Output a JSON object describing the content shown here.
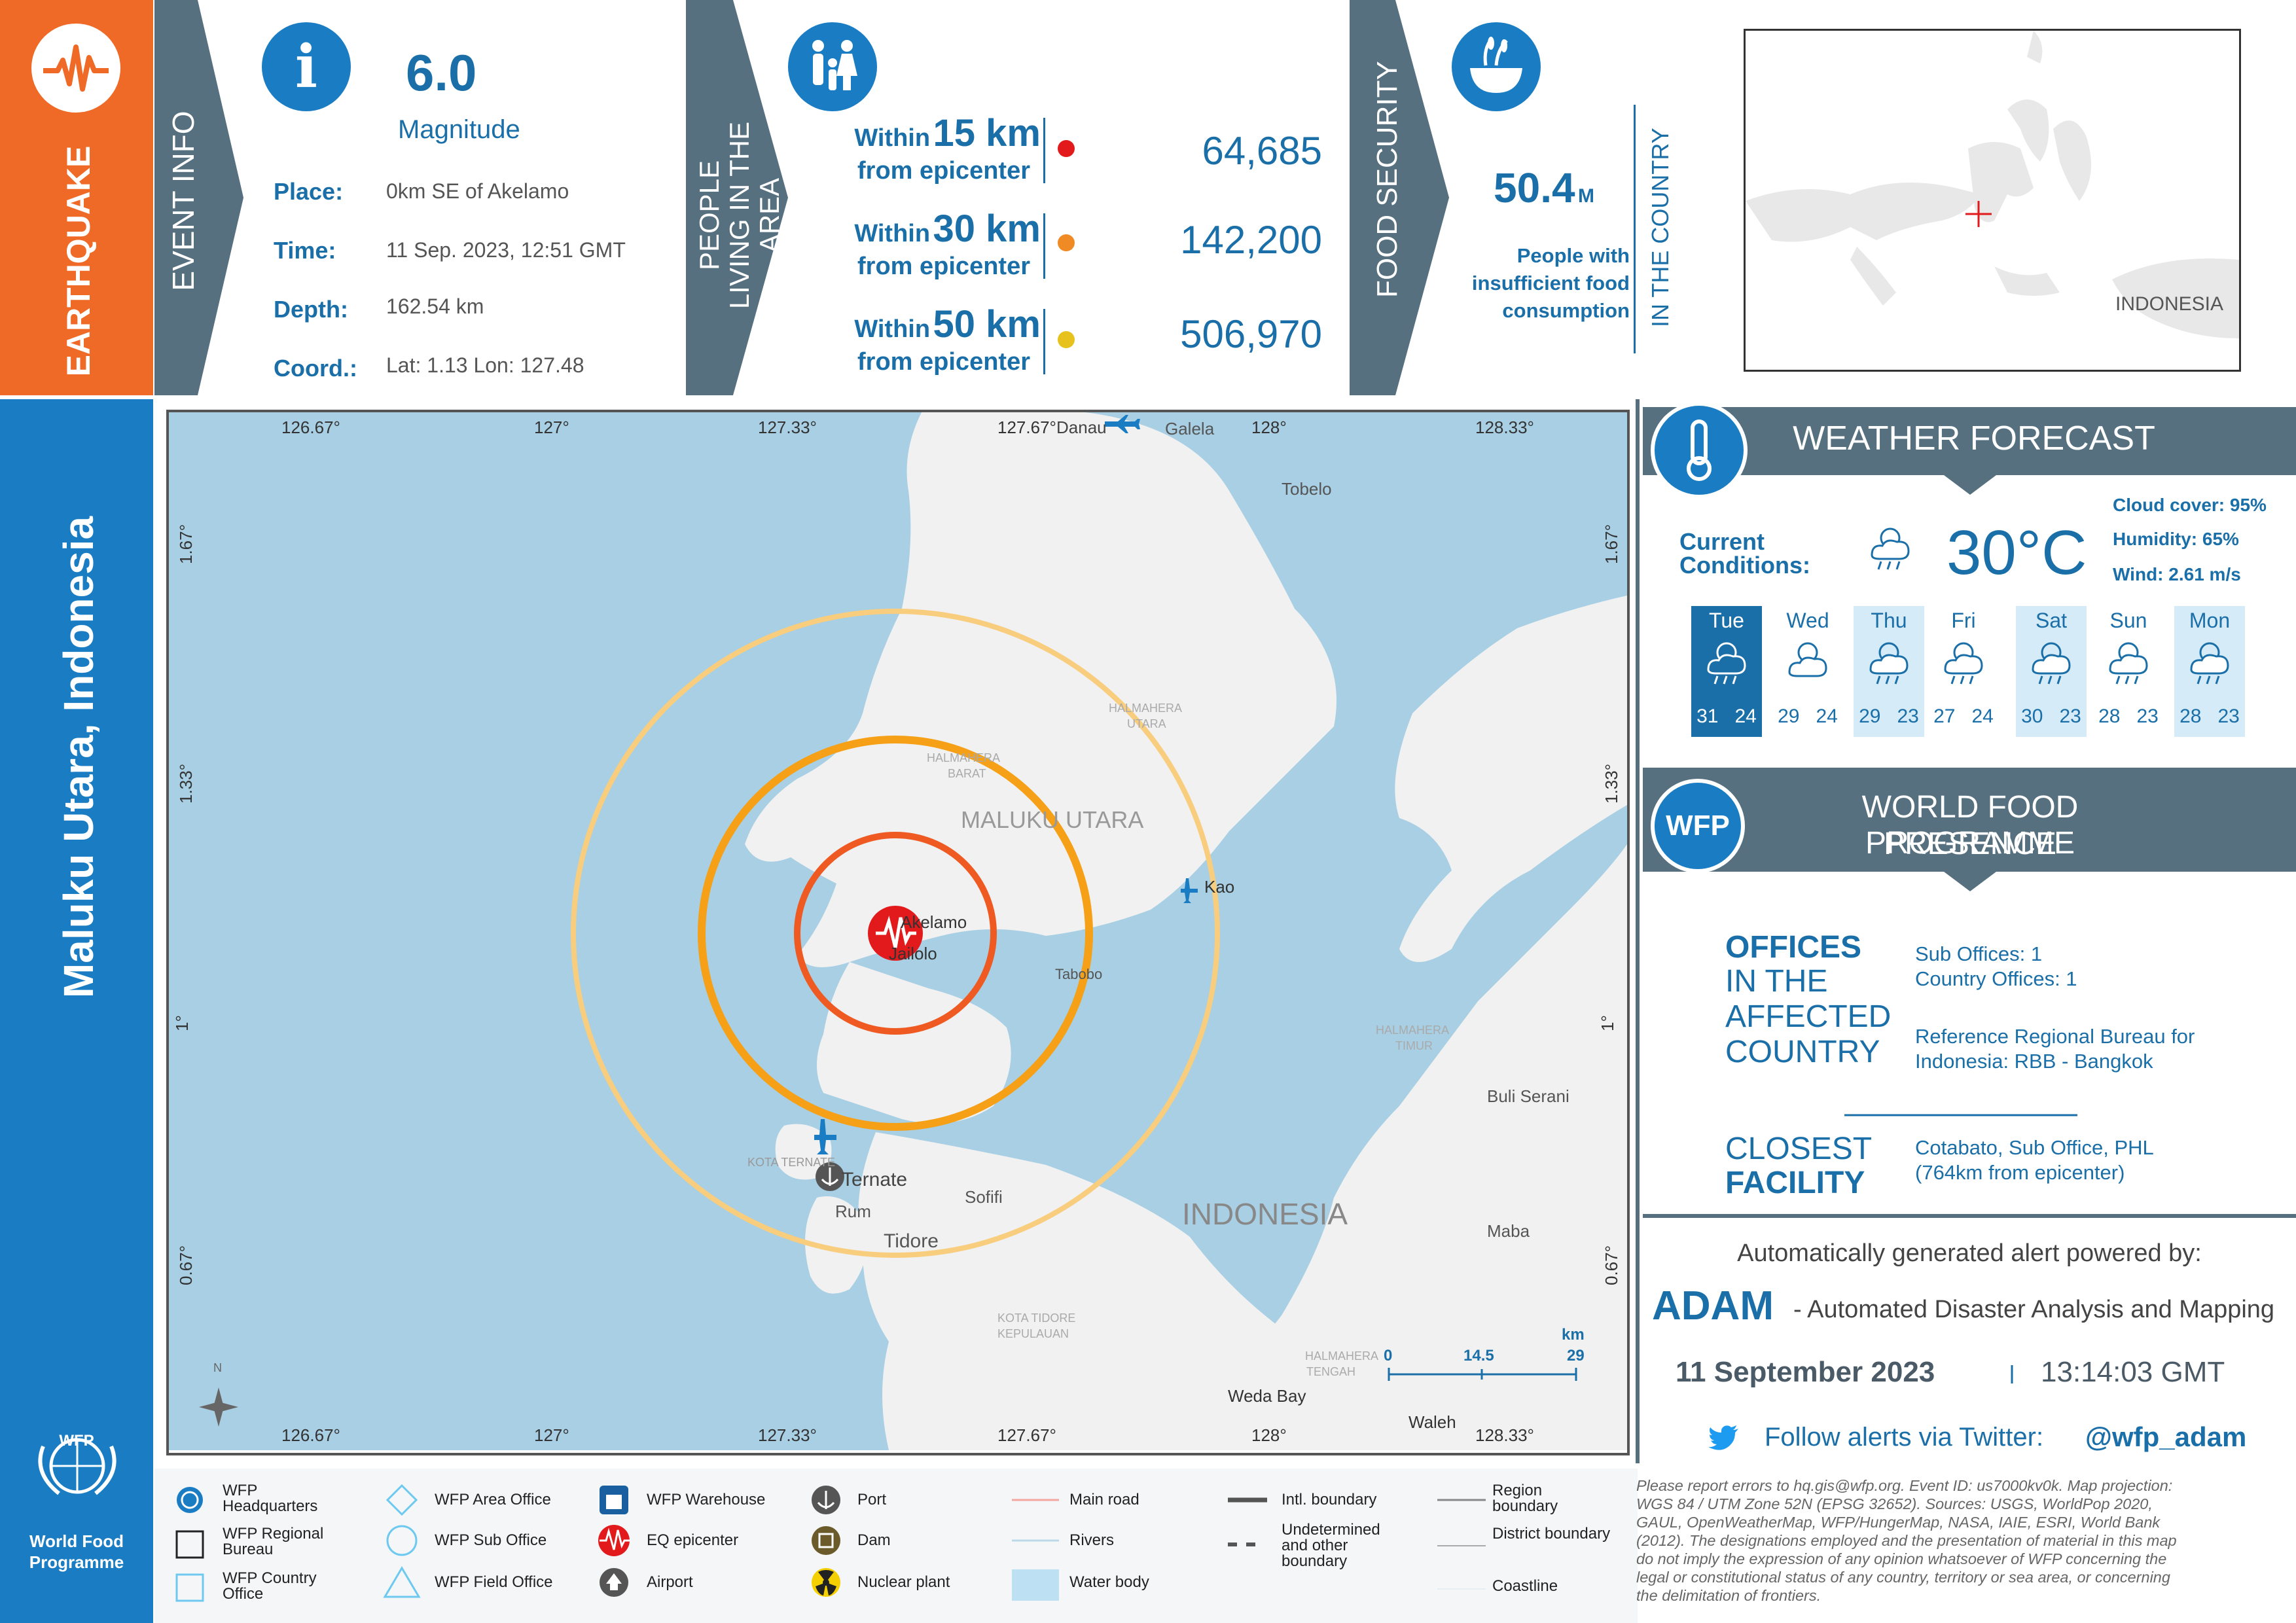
{
  "event_type": "EARTHQUAKE",
  "region_title": "Maluku Utara, Indonesia",
  "event_info": {
    "header": "EVENT INFO",
    "magnitude": "6.0",
    "magnitude_label": "Magnitude",
    "place_label": "Place:",
    "place": "0km SE of Akelamo",
    "time_label": "Time:",
    "time": "11 Sep. 2023, 12:51 GMT",
    "depth_label": "Depth:",
    "depth": "162.54 km",
    "coord_label": "Coord.:",
    "coord": "Lat: 1.13 Lon: 127.48"
  },
  "population": {
    "header": "PEOPLE LIVING IN THE AREA",
    "rows": [
      {
        "within": "Within",
        "km": "15 km",
        "from": "from epicenter",
        "value": "64,685",
        "color": "#e31a1c"
      },
      {
        "within": "Within",
        "km": "30 km",
        "from": "from epicenter",
        "value": "142,200",
        "color": "#f08a24"
      },
      {
        "within": "Within",
        "km": "50 km",
        "from": "from epicenter",
        "value": "506,970",
        "color": "#e8c21c"
      }
    ]
  },
  "food_security": {
    "header": "FOOD SECURITY",
    "value": "50.4",
    "unit": "M",
    "desc": "People with insufficient food consumption",
    "side": "IN THE COUNTRY"
  },
  "inset_map": {
    "label": "INDONESIA"
  },
  "weather": {
    "header": "WEATHER FORECAST",
    "current_label": "Current Conditions:",
    "temperature": "30°C",
    "cloud": "Cloud cover: 95%",
    "humidity": "Humidity: 65%",
    "wind": "Wind: 2.61 m/s",
    "days": [
      {
        "name": "Tue",
        "hi": "31",
        "lo": "24"
      },
      {
        "name": "Wed",
        "hi": "29",
        "lo": "24"
      },
      {
        "name": "Thu",
        "hi": "29",
        "lo": "23"
      },
      {
        "name": "Fri",
        "hi": "27",
        "lo": "24"
      },
      {
        "name": "Sat",
        "hi": "30",
        "lo": "23"
      },
      {
        "name": "Sun",
        "hi": "28",
        "lo": "23"
      },
      {
        "name": "Mon",
        "hi": "28",
        "lo": "23"
      }
    ]
  },
  "wfp_presence": {
    "header_line1": "WORLD FOOD PROGRAMME",
    "header_line2": "PRESENCE",
    "badge": "WFP",
    "offices_l1": "OFFICES",
    "offices_l2": "IN THE",
    "offices_l3": "AFFECTED",
    "offices_l4": "COUNTRY",
    "sub_offices": "Sub Offices: 1",
    "country_offices": "Country Offices: 1",
    "rbb_line1": "Reference Regional Bureau for",
    "rbb_line2": "Indonesia: RBB - Bangkok",
    "closest_l1": "CLOSEST",
    "closest_l2": "FACILITY",
    "closest_line1": "Cotabato, Sub Office, PHL",
    "closest_line2": "(764km from epicenter)"
  },
  "adam": {
    "powered": "Automatically generated alert powered by:",
    "name": "ADAM",
    "desc": "- Automated Disaster Analysis and Mapping",
    "date": "11 September 2023",
    "time": "13:14:03 GMT",
    "follow": "Follow alerts via Twitter:",
    "handle": "@wfp_adam"
  },
  "map": {
    "lon_ticks": [
      "126.67°",
      "127°",
      "127.33°",
      "127.67°",
      "128°",
      "128.33°"
    ],
    "lat_ticks": [
      "1.67°",
      "1.33°",
      "1°",
      "0.67°"
    ],
    "places": {
      "danau": "Danau",
      "galela": "Galela",
      "tobelo": "Tobelo",
      "halmahera_utara_1": "HALMAHERA",
      "halmahera_utara_2": "UTARA",
      "halmahera_barat_1": "HALMAHERA",
      "halmahera_barat_2": "BARAT",
      "maluku_utara": "MALUKU UTARA",
      "kao": "Kao",
      "akelamo": "Akelamo",
      "jailolo": "Jailolo",
      "tabobo": "Tabobo",
      "halmahera_timur_1": "HALMAHERA",
      "halmahera_timur_2": "TIMUR",
      "buli": "Buli Serani",
      "kota_ternate": "KOTA TERNATE",
      "ternate": "Ternate",
      "rum": "Rum",
      "sofifi": "Sofifi",
      "tidore": "Tidore",
      "indonesia": "INDONESIA",
      "maba": "Maba",
      "kota_tidore_1": "KOTA TIDORE",
      "kota_tidore_2": "KEPULAUAN",
      "halmahera_tengah_1": "HALMAHERA",
      "halmahera_tengah_2": "TENGAH",
      "weda_bay": "Weda Bay",
      "waleh": "Waleh"
    },
    "scale": {
      "zero": "0",
      "mid": "14.5",
      "unit": "km",
      "end": "29"
    },
    "north": "N"
  },
  "wfp_logo": {
    "line1": "WFP",
    "line2": "World Food",
    "line3": "Programme"
  },
  "legend": {
    "hq_1": "WFP",
    "hq_2": "Headquarters",
    "rb_1": "WFP Regional",
    "rb_2": "Bureau",
    "co_1": "WFP Country",
    "co_2": "Office",
    "area_office": "WFP Area Office",
    "sub_office": "WFP Sub Office",
    "field_office": "WFP Field Office",
    "warehouse": "WFP Warehouse",
    "eq_epicenter": "EQ epicenter",
    "airport": "Airport",
    "port": "Port",
    "dam": "Dam",
    "nuclear": "Nuclear plant",
    "main_road": "Main road",
    "rivers": "Rivers",
    "water_body": "Water body",
    "intl_boundary": "Intl. boundary",
    "undetermined_1": "Undetermined",
    "undetermined_2": "and other",
    "undetermined_3": "boundary",
    "region_1": "Region",
    "region_2": "boundary",
    "district": "District boundary",
    "coastline": "Coastline"
  },
  "disclaimer": [
    "Please report errors to hq.gis@wfp.org. Event ID: us7000kv0k. Map projection:",
    "WGS 84 / UTM Zone 52N (EPSG 32652). Sources: USGS, WorldPop 2020,",
    "GAUL, OpenWeatherMap, WFP/HungerMap, NASA, IAIE, ESRI, World Bank",
    "(2012). The designations employed and the presentation of material in this map",
    "do not imply the expression of any opinion whatsoever of WFP concerning the",
    "legal or constitutional status of any country, territory or sea area, or concerning",
    "the delimitation of frontiers."
  ],
  "colors": {
    "orange": "#ee6a26",
    "blue": "#1a7dc4",
    "slate": "#56707f",
    "text_blue": "#1a6fa8",
    "water": "#a8cfe3",
    "land": "#f1f1f1"
  }
}
